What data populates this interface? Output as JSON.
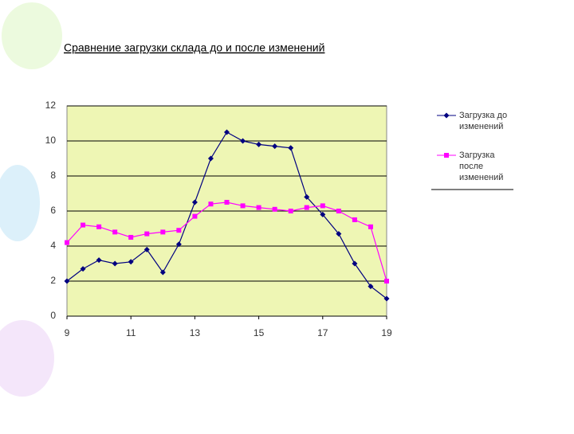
{
  "chart_data": {
    "type": "line",
    "title": "Сравнение загрузки склада до и после изменений",
    "x": [
      9,
      9.5,
      10,
      10.5,
      11,
      11.5,
      12,
      12.5,
      13,
      13.5,
      14,
      14.5,
      15,
      15.5,
      16,
      16.5,
      17,
      17.5,
      18,
      18.5,
      19
    ],
    "series": [
      {
        "name": "Загрузка до изменений",
        "color": "#000080",
        "marker": "diamond",
        "values": [
          2.0,
          2.7,
          3.2,
          3.0,
          3.1,
          3.8,
          2.5,
          4.1,
          6.5,
          9.0,
          10.5,
          10.0,
          9.8,
          9.7,
          9.6,
          6.8,
          5.8,
          4.7,
          3.0,
          1.7,
          1.0
        ]
      },
      {
        "name": "Загрузка после изменений",
        "color": "#ff00ff",
        "marker": "square",
        "values": [
          4.2,
          5.2,
          5.1,
          4.8,
          4.5,
          4.7,
          4.8,
          4.9,
          5.7,
          6.4,
          6.5,
          6.3,
          6.2,
          6.1,
          6.0,
          6.2,
          6.3,
          6.0,
          5.5,
          5.1,
          2.0
        ]
      }
    ],
    "xlim": [
      9,
      19
    ],
    "xticks": [
      9,
      11,
      13,
      15,
      17,
      19
    ],
    "ylim": [
      0,
      12
    ],
    "yticks": [
      0,
      2,
      4,
      6,
      8,
      10,
      12
    ],
    "grid": true,
    "legend": "right"
  }
}
